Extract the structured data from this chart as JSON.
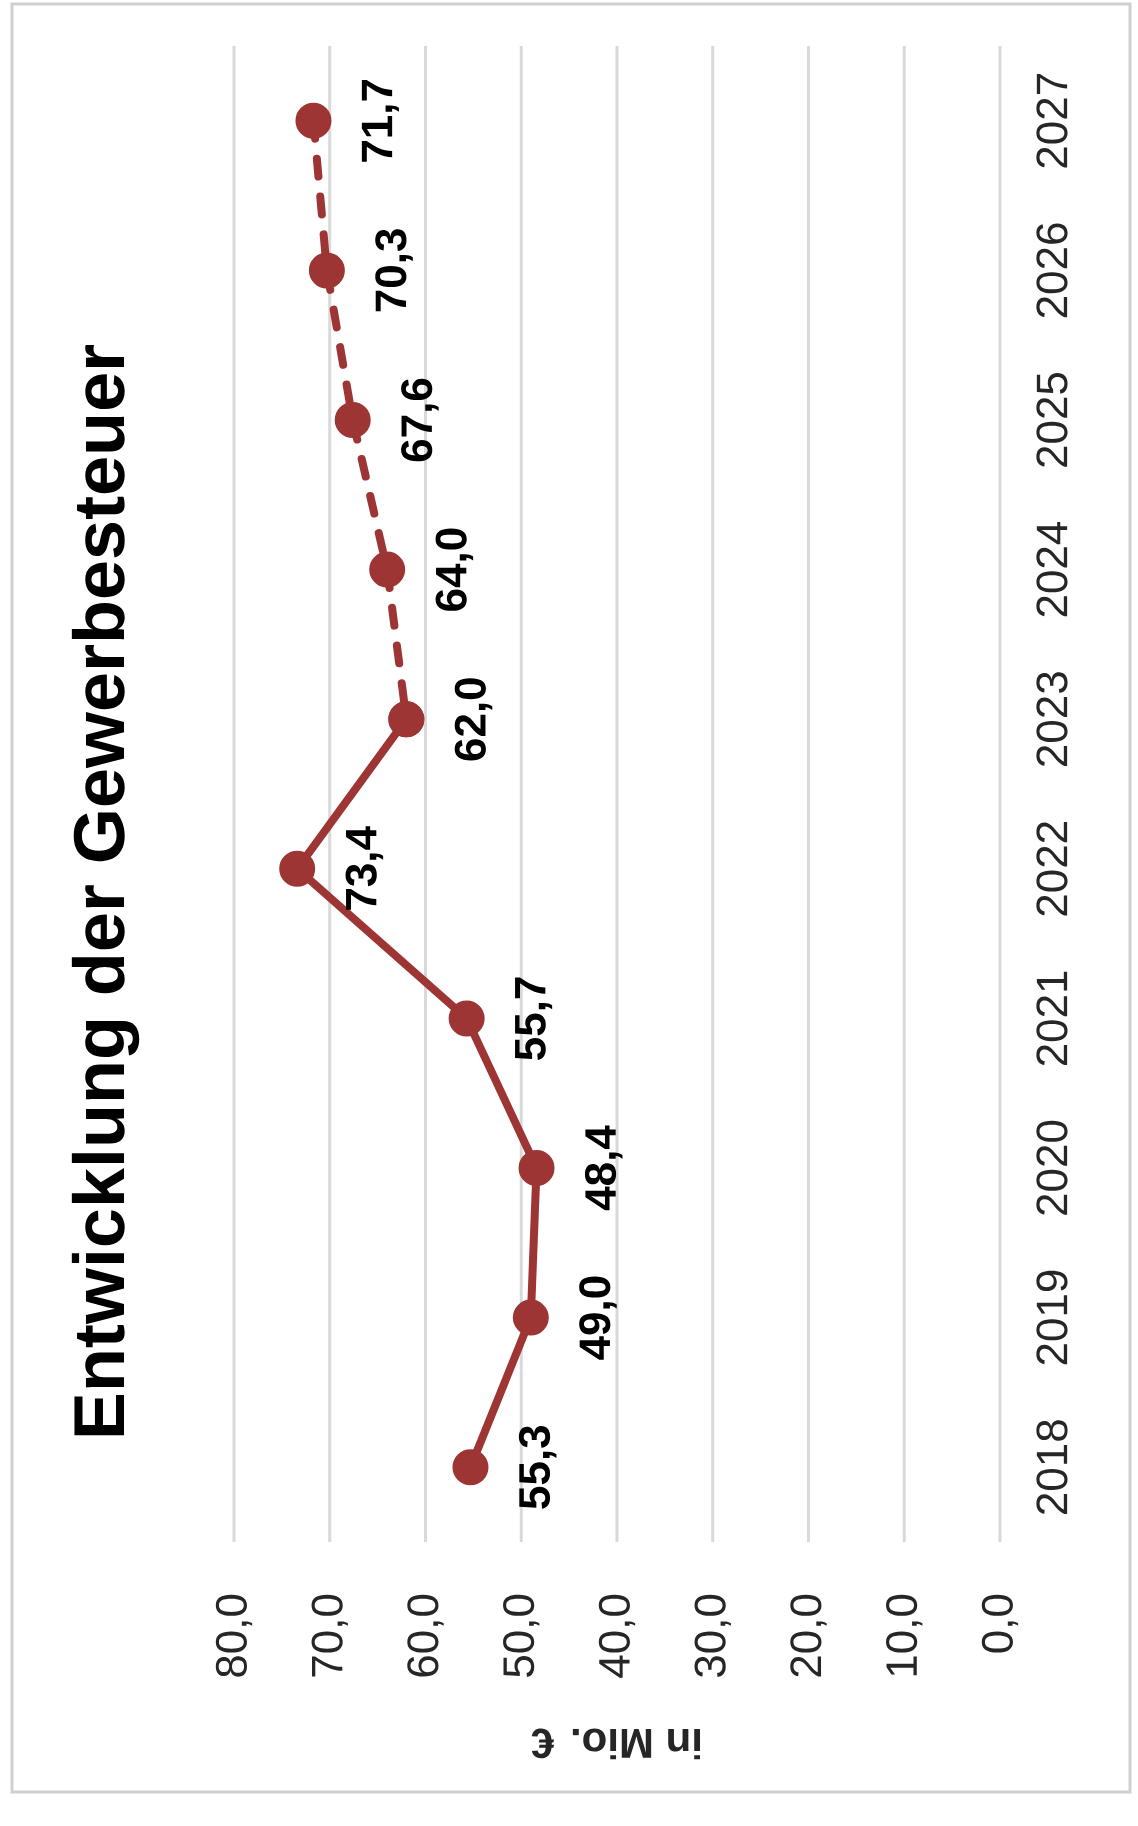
{
  "chart_data": {
    "type": "line",
    "orientation": "horizontal",
    "title": "Entwicklung der Gewerbesteuer",
    "xlabel": "in Mio. €",
    "categories": [
      "2027",
      "2026",
      "2025",
      "2024",
      "2023",
      "2022",
      "2021",
      "2020",
      "2019",
      "2018"
    ],
    "series": [
      {
        "color": "#9e3535",
        "line_style": "solid",
        "values": [
          null,
          null,
          null,
          null,
          62.0,
          73.4,
          55.7,
          48.4,
          49.0,
          55.3
        ],
        "value_labels": [
          null,
          null,
          null,
          null,
          "62,0",
          "73,4",
          "55,7",
          "48,4",
          "49,0",
          "55,3"
        ]
      },
      {
        "color": "#9e3535",
        "line_style": "dashed",
        "values": [
          71.7,
          70.3,
          67.6,
          64.0,
          62.0,
          null,
          null,
          null,
          null,
          null
        ],
        "value_labels": [
          "71,7",
          "70,3",
          "67,6",
          "64,0",
          null,
          null,
          null,
          null,
          null,
          null
        ]
      }
    ],
    "xlim": [
      80,
      0
    ],
    "xticks": [
      {
        "value": 80,
        "label": "80,0"
      },
      {
        "value": 70,
        "label": "70,0"
      },
      {
        "value": 60,
        "label": "60,0"
      },
      {
        "value": 50,
        "label": "50,0"
      },
      {
        "value": 40,
        "label": "40,0"
      },
      {
        "value": 30,
        "label": "30,0"
      },
      {
        "value": 20,
        "label": "20,0"
      },
      {
        "value": 10,
        "label": "10,0"
      },
      {
        "value": 0,
        "label": "0,0"
      }
    ],
    "grid": "x",
    "marker": "circle"
  }
}
